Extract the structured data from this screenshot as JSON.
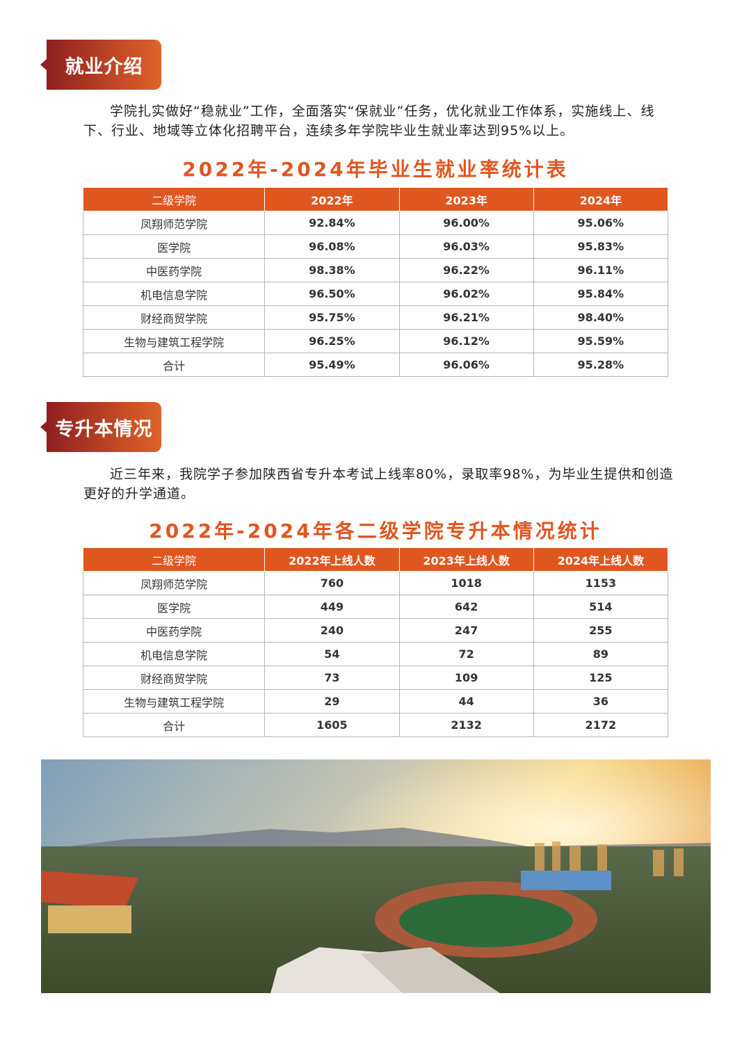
{
  "sections": [
    {
      "heading": "就业介绍",
      "paragraph": "学院扎实做好“稳就业”工作，全面落实“保就业”任务，优化就业工作体系，实施线上、线下、行业、地域等立体化招聘平台，连续多年学院毕业生就业率达到95%以上。",
      "table": {
        "title": "2022年-2024年毕业生就业率统计表",
        "columns": [
          "二级学院",
          "2022年",
          "2023年",
          "2024年"
        ],
        "rows": [
          [
            "凤翔师范学院",
            "92.84%",
            "96.00%",
            "95.06%"
          ],
          [
            "医学院",
            "96.08%",
            "96.03%",
            "95.83%"
          ],
          [
            "中医药学院",
            "98.38%",
            "96.22%",
            "96.11%"
          ],
          [
            "机电信息学院",
            "96.50%",
            "96.02%",
            "95.84%"
          ],
          [
            "财经商贸学院",
            "95.75%",
            "96.21%",
            "98.40%"
          ],
          [
            "生物与建筑工程学院",
            "96.25%",
            "96.12%",
            "95.59%"
          ],
          [
            "合计",
            "95.49%",
            "96.06%",
            "95.28%"
          ]
        ]
      }
    },
    {
      "heading": "专升本情况",
      "paragraph": "近三年来，我院学子参加陕西省专升本考试上线率80%，录取率98%，为毕业生提供和创造更好的升学通道。",
      "table": {
        "title": "2022年-2024年各二级学院专升本情况统计",
        "columns": [
          "二级学院",
          "2022年上线人数",
          "2023年上线人数",
          "2024年上线人数"
        ],
        "rows": [
          [
            "凤翔师范学院",
            "760",
            "1018",
            "1153"
          ],
          [
            "医学院",
            "449",
            "642",
            "514"
          ],
          [
            "中医药学院",
            "240",
            "247",
            "255"
          ],
          [
            "机电信息学院",
            "54",
            "72",
            "89"
          ],
          [
            "财经商贸学院",
            "73",
            "109",
            "125"
          ],
          [
            "生物与建筑工程学院",
            "29",
            "44",
            "36"
          ],
          [
            "合计",
            "1605",
            "2132",
            "2172"
          ]
        ]
      }
    }
  ]
}
